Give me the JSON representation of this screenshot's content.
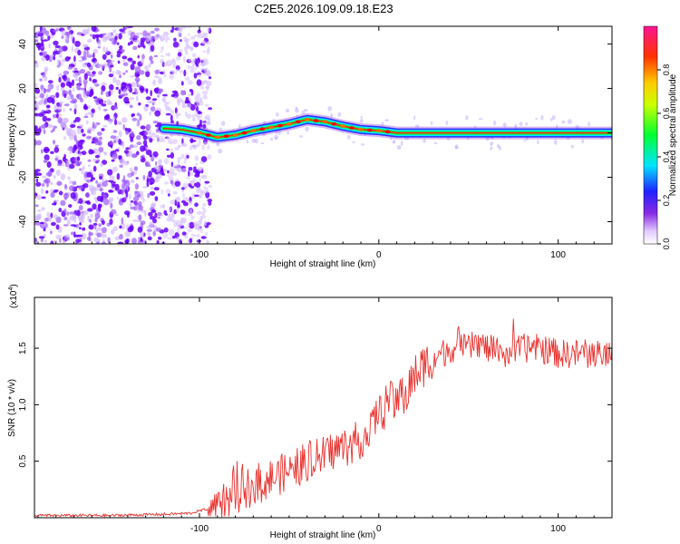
{
  "title": "C2E5.2026.109.09.18.E23",
  "chart_data": [
    {
      "type": "heatmap",
      "name": "spectrogram",
      "xlabel": "Height of straight line (km)",
      "ylabel": "Frequency (Hz)",
      "xlim": [
        -192,
        130
      ],
      "ylim": [
        -50,
        48
      ],
      "xticks": [
        -100,
        0,
        100
      ],
      "xtick_labels": [
        "-100",
        "0",
        "100"
      ],
      "yticks": [
        -40,
        -20,
        0,
        20,
        40
      ],
      "ytick_labels": [
        "-40",
        "-20",
        "0",
        "20",
        "40"
      ],
      "noise_region_x": [
        -192,
        -98
      ],
      "ridge": {
        "x": [
          -120,
          -110,
          -100,
          -90,
          -80,
          -70,
          -60,
          -50,
          -40,
          -30,
          -20,
          -10,
          0,
          10,
          20,
          40,
          60,
          80,
          100,
          130
        ],
        "y": [
          2,
          1.5,
          0,
          -2,
          -1,
          1,
          2.5,
          4,
          6,
          5,
          3,
          1.5,
          1,
          0,
          0,
          0,
          0,
          0,
          0,
          0
        ]
      },
      "colorbar": {
        "label": "Normalized spectral amplitude",
        "range": [
          0,
          1
        ],
        "ticks": [
          0.0,
          0.2,
          0.4,
          0.6,
          0.8
        ],
        "tick_labels": [
          "0.0",
          "0.2",
          "0.4",
          "0.6",
          "0.8"
        ],
        "colors": [
          "#ffffff",
          "#cc99ff",
          "#7a00ff",
          "#0000ff",
          "#00e5ff",
          "#00ff33",
          "#ffff00",
          "#ff7f00",
          "#ff0000",
          "#ff1493"
        ]
      }
    },
    {
      "type": "line",
      "name": "snr",
      "xlabel": "Height of straight line (km)",
      "ylabel": "SNR (10 * v/v)",
      "y_multiplier": "(x10",
      "y_multiplier_exp": "4",
      "y_multiplier_close": ")",
      "xlim": [
        -192,
        130
      ],
      "ylim": [
        0,
        1.95
      ],
      "xticks": [
        -100,
        0,
        100
      ],
      "xtick_labels": [
        "-100",
        "0",
        "100"
      ],
      "yticks": [
        0.5,
        1.0,
        1.5
      ],
      "ytick_labels": [
        "0.5",
        "1.0",
        "1.5"
      ],
      "color": "#e8322e",
      "series": [
        {
          "name": "SNR",
          "x": [
            -192,
            -150,
            -120,
            -105,
            -95,
            -90,
            -85,
            -80,
            -75,
            -70,
            -65,
            -60,
            -55,
            -50,
            -45,
            -40,
            -35,
            -30,
            -25,
            -20,
            -15,
            -10,
            -5,
            0,
            5,
            10,
            15,
            20,
            25,
            30,
            35,
            40,
            45,
            50,
            55,
            60,
            70,
            80,
            90,
            100,
            110,
            120,
            130
          ],
          "y": [
            0.02,
            0.02,
            0.03,
            0.04,
            0.08,
            0.12,
            0.15,
            0.2,
            0.25,
            0.3,
            0.32,
            0.35,
            0.38,
            0.42,
            0.45,
            0.5,
            0.52,
            0.55,
            0.6,
            0.62,
            0.65,
            0.7,
            0.75,
            0.95,
            1.0,
            1.05,
            1.1,
            1.25,
            1.35,
            1.4,
            1.45,
            1.5,
            1.5,
            1.5,
            1.55,
            1.5,
            1.45,
            1.5,
            1.5,
            1.45,
            1.45,
            1.45,
            1.45
          ]
        }
      ]
    }
  ]
}
